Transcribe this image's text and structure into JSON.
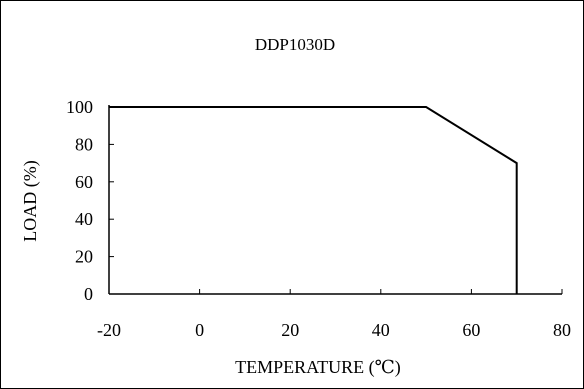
{
  "chart_data": {
    "type": "line",
    "title": "DDP1030D",
    "xlabel": "TEMPERATURE (℃)",
    "ylabel": "LOAD (%)",
    "xlim": [
      -20,
      80
    ],
    "ylim": [
      0,
      100
    ],
    "x_ticks": [
      "-20",
      "0",
      "20",
      "40",
      "60",
      "80"
    ],
    "y_ticks": [
      "0",
      "20",
      "40",
      "60",
      "80",
      "100"
    ],
    "grid": false,
    "series": [
      {
        "x": [
          -20,
          50,
          70,
          70
        ],
        "y": [
          100,
          100,
          70,
          0
        ]
      }
    ]
  }
}
